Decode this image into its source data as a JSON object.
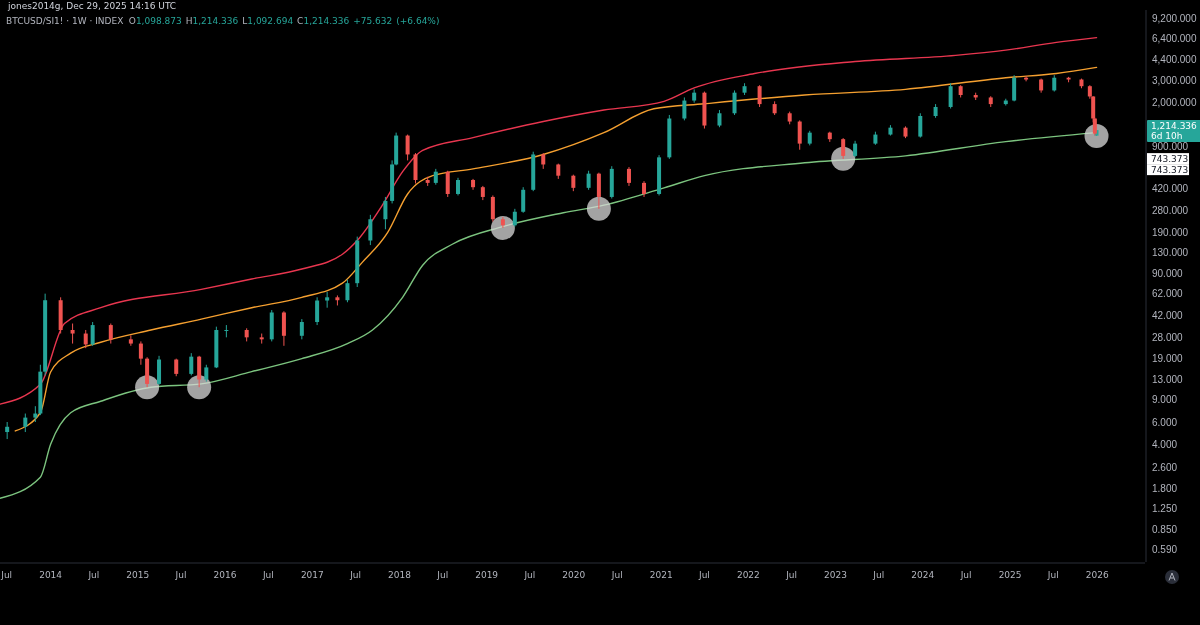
{
  "chart_data": {
    "type": "candlestick",
    "title": "BTCUSD/SI1! · 1W · INDEX",
    "subtitle": "O1,098.873 H1,214.336 L1,092.694 C1,214.336 +75.632 (+6.64%)",
    "annotations": [
      "jones2014g, Dec 29, 2025 14:16 UTC",
      "1,214.336",
      "6d 10h",
      "743.373",
      "743.373"
    ],
    "log": true,
    "xlim": [
      "2013-06-03",
      "2026-07-20"
    ],
    "ylim": [
      0.47,
      10800
    ],
    "xticks": [
      {
        "value": "2013-07-01",
        "label": "Jul"
      },
      {
        "value": "2014-01-01",
        "label": "2014"
      },
      {
        "value": "2014-07-01",
        "label": "Jul"
      },
      {
        "value": "2015-01-01",
        "label": "2015"
      },
      {
        "value": "2015-07-01",
        "label": "Jul"
      },
      {
        "value": "2016-01-01",
        "label": "2016"
      },
      {
        "value": "2016-07-01",
        "label": "Jul"
      },
      {
        "value": "2017-01-01",
        "label": "2017"
      },
      {
        "value": "2017-07-01",
        "label": "Jul"
      },
      {
        "value": "2018-01-01",
        "label": "2018"
      },
      {
        "value": "2018-07-01",
        "label": "Jul"
      },
      {
        "value": "2019-01-01",
        "label": "2019"
      },
      {
        "value": "2019-07-01",
        "label": "Jul"
      },
      {
        "value": "2020-01-01",
        "label": "2020"
      },
      {
        "value": "2020-07-01",
        "label": "Jul"
      },
      {
        "value": "2021-01-01",
        "label": "2021"
      },
      {
        "value": "2021-07-01",
        "label": "Jul"
      },
      {
        "value": "2022-01-01",
        "label": "2022"
      },
      {
        "value": "2022-07-01",
        "label": "Jul"
      },
      {
        "value": "2023-01-01",
        "label": "2023"
      },
      {
        "value": "2023-07-01",
        "label": "Jul"
      },
      {
        "value": "2024-01-01",
        "label": "2024"
      },
      {
        "value": "2024-07-01",
        "label": "Jul"
      },
      {
        "value": "2025-01-01",
        "label": "2025"
      },
      {
        "value": "2025-07-01",
        "label": "Jul"
      },
      {
        "value": "2026-01-01",
        "label": "2026"
      }
    ],
    "yticks": [
      {
        "value": 9200,
        "label": "9,200.000"
      },
      {
        "value": 6400,
        "label": "6,400.000"
      },
      {
        "value": 4400,
        "label": "4,400.000"
      },
      {
        "value": 3000,
        "label": "3,000.000"
      },
      {
        "value": 2000,
        "label": "2,000.000"
      },
      {
        "value": 900,
        "label": "900.000"
      },
      {
        "value": 420,
        "label": "420.000"
      },
      {
        "value": 280,
        "label": "280.000"
      },
      {
        "value": 190,
        "label": "190.000"
      },
      {
        "value": 130,
        "label": "130.000"
      },
      {
        "value": 90,
        "label": "90.000"
      },
      {
        "value": 62,
        "label": "62.000"
      },
      {
        "value": 42,
        "label": "42.000"
      },
      {
        "value": 28,
        "label": "28.000"
      },
      {
        "value": 19,
        "label": "19.000"
      },
      {
        "value": 13,
        "label": "13.000"
      },
      {
        "value": 9,
        "label": "9.000"
      },
      {
        "value": 6,
        "label": "6.000"
      },
      {
        "value": 4,
        "label": "4.000"
      },
      {
        "value": 2.6,
        "label": "2.600"
      },
      {
        "value": 1.8,
        "label": "1.800"
      },
      {
        "value": 1.25,
        "label": "1.250"
      },
      {
        "value": 0.85,
        "label": "0.850"
      },
      {
        "value": 0.59,
        "label": "0.590"
      }
    ],
    "series": [
      {
        "type": "line",
        "color": "#e8364f",
        "x": [
          "2013-06-03",
          "2013-11-19",
          "2014-02-28",
          "2014-07-30",
          "2015-09-24",
          "2016-04-22",
          "2016-11-18",
          "2017-05-07",
          "2017-07-08",
          "2017-10-22",
          "2018-01-14",
          "2018-04-08",
          "2018-11-05",
          "2019-08-26",
          "2020-05-06",
          "2021-01-13",
          "2021-05-19",
          "2022-01-27",
          "2023-03-24",
          "2024-05-18",
          "2024-12-14",
          "2025-07-14",
          "2025-12-29"
        ],
        "values": [
          8.3,
          11.9,
          36,
          48,
          67,
          81,
          97,
          127,
          163,
          312,
          570,
          840,
          1060,
          1420,
          1750,
          2050,
          2620,
          3400,
          4230,
          4730,
          5200,
          5990,
          6530
        ]
      },
      {
        "type": "line",
        "color": "#f5a030",
        "x": [
          "2013-08-06",
          "2013-11-19",
          "2014-01-01",
          "2014-03-26",
          "2014-07-30",
          "2015-02-25",
          "2015-09-24",
          "2016-04-22",
          "2016-11-18",
          "2017-05-07",
          "2017-07-30",
          "2017-11-12",
          "2018-02-04",
          "2018-05-20",
          "2018-11-05",
          "2019-08-26",
          "2020-05-06",
          "2020-12-01",
          "2021-07-01",
          "2022-08-25",
          "2023-10-21",
          "2024-12-14",
          "2025-07-14",
          "2025-12-29"
        ],
        "values": [
          5.1,
          7.1,
          14.9,
          21,
          25.6,
          32,
          39,
          48,
          58,
          75,
          110,
          188,
          380,
          530,
          600,
          780,
          1160,
          1790,
          1960,
          2300,
          2550,
          3150,
          3400,
          3800
        ]
      },
      {
        "type": "line",
        "color": "#7cc47f",
        "x": [
          "2013-06-03",
          "2013-11-19",
          "2014-01-01",
          "2014-03-26",
          "2014-07-30",
          "2015-02-25",
          "2015-09-24",
          "2016-04-22",
          "2016-11-18",
          "2017-05-28",
          "2017-09-10",
          "2018-01-14",
          "2018-04-08",
          "2018-08-12",
          "2019-03-10",
          "2019-11-18",
          "2020-05-06",
          "2021-01-13",
          "2021-07-01",
          "2022-08-25",
          "2023-10-21",
          "2024-12-14",
          "2025-12-29"
        ],
        "values": [
          1.5,
          2.2,
          4.0,
          7.1,
          8.75,
          11.3,
          12.0,
          15,
          19,
          25,
          32,
          58,
          104,
          153,
          210,
          270,
          310,
          425,
          530,
          670,
          760,
          985,
          1160
        ]
      },
      {
        "type": "scatter",
        "color": "#d9d9d9",
        "marker": "circle",
        "x": [
          "2015-02-09",
          "2015-09-15",
          "2019-03-10",
          "2020-04-15",
          "2023-02-02",
          "2025-12-29"
        ],
        "values": [
          11.3,
          11.3,
          205,
          290,
          720,
          1092.694
        ]
      },
      {
        "type": "candlestick",
        "color": "#26a69a",
        "x": [
          "2013-07-03",
          "2013-09-17",
          "2013-10-29",
          "2013-11-19",
          "2013-12-09",
          "2014-06-26",
          "2015-03-31",
          "2015-08-13",
          "2015-10-15",
          "2015-11-26",
          "2016-01-07",
          "2016-07-15",
          "2016-11-18",
          "2017-01-21",
          "2017-03-04",
          "2017-05-28",
          "2017-07-08",
          "2017-09-01",
          "2017-11-03",
          "2017-12-01",
          "2017-12-18",
          "2018-06-02",
          "2018-09-03",
          "2019-04-29",
          "2019-06-03",
          "2019-07-15",
          "2020-03-03",
          "2020-06-08",
          "2020-12-23",
          "2021-02-04",
          "2021-04-08",
          "2021-05-19",
          "2021-09-02",
          "2021-11-04",
          "2021-12-16",
          "2022-09-15",
          "2023-03-24",
          "2023-06-17",
          "2023-08-19",
          "2023-12-22",
          "2024-02-24",
          "2024-04-27",
          "2024-12-14",
          "2025-01-18",
          "2025-07-05",
          "2025-12-29"
        ],
        "ohlc": [
          [
            5.0,
            6.0,
            4.4,
            5.5
          ],
          [
            5.5,
            7.0,
            5.0,
            6.5
          ],
          [
            6.5,
            8.0,
            6.0,
            7.0
          ],
          [
            7.0,
            17,
            6.8,
            15
          ],
          [
            15,
            62,
            14,
            55
          ],
          [
            24.6,
            37,
            24,
            35
          ],
          [
            12,
            20,
            11.8,
            18.7
          ],
          [
            14.4,
            21,
            14,
            19.7
          ],
          [
            13,
            17,
            12.5,
            16.2
          ],
          [
            16.2,
            34,
            16,
            32
          ],
          [
            32,
            35,
            28,
            32
          ],
          [
            27,
            46,
            26,
            44
          ],
          [
            28.8,
            39,
            27,
            37
          ],
          [
            37,
            58,
            35,
            54.7
          ],
          [
            54.7,
            64,
            48,
            58
          ],
          [
            55,
            80,
            53,
            75
          ],
          [
            75,
            175,
            70,
            163
          ],
          [
            163,
            260,
            150,
            240
          ],
          [
            240,
            360,
            200,
            335
          ],
          [
            335,
            700,
            320,
            650
          ],
          [
            650,
            1160,
            640,
            1100
          ],
          [
            465,
            600,
            450,
            570
          ],
          [
            380,
            510,
            370,
            490
          ],
          [
            215,
            290,
            210,
            275
          ],
          [
            275,
            430,
            270,
            410
          ],
          [
            410,
            820,
            400,
            780
          ],
          [
            425,
            580,
            410,
            550
          ],
          [
            360,
            630,
            350,
            600
          ],
          [
            380,
            770,
            370,
            740
          ],
          [
            740,
            1600,
            720,
            1500
          ],
          [
            1500,
            2200,
            1450,
            2080
          ],
          [
            2080,
            2550,
            2000,
            2400
          ],
          [
            1320,
            1750,
            1280,
            1650
          ],
          [
            1650,
            2500,
            1600,
            2400
          ],
          [
            2400,
            2850,
            2300,
            2700
          ],
          [
            950,
            1200,
            920,
            1160
          ],
          [
            760,
            1000,
            740,
            950
          ],
          [
            950,
            1180,
            930,
            1120
          ],
          [
            1120,
            1330,
            1100,
            1270
          ],
          [
            1080,
            1650,
            1060,
            1570
          ],
          [
            1570,
            1950,
            1520,
            1850
          ],
          [
            1850,
            2850,
            1800,
            2700
          ],
          [
            1950,
            2150,
            1900,
            2080
          ],
          [
            2080,
            3300,
            2050,
            3150
          ],
          [
            2500,
            3300,
            2450,
            3150
          ],
          [
            1098.873,
            1214.336,
            1092.694,
            1214.336
          ]
        ]
      },
      {
        "type": "candlestick",
        "color": "#ef5350",
        "x": [
          "2014-02-12",
          "2014-04-03",
          "2014-05-28",
          "2014-09-10",
          "2014-12-03",
          "2015-01-14",
          "2015-02-09",
          "2015-06-11",
          "2015-09-15",
          "2016-04-01",
          "2016-06-03",
          "2016-09-04",
          "2017-04-16",
          "2018-02-04",
          "2018-03-09",
          "2018-04-29",
          "2018-07-22",
          "2018-11-05",
          "2018-12-16",
          "2019-01-27",
          "2019-03-10",
          "2019-08-26",
          "2019-10-28",
          "2019-12-30",
          "2020-04-15",
          "2020-08-19",
          "2020-10-21",
          "2021-07-01",
          "2022-02-17",
          "2022-04-21",
          "2022-06-23",
          "2022-08-04",
          "2022-12-08",
          "2023-02-02",
          "2023-10-21",
          "2024-06-08",
          "2024-08-10",
          "2024-10-12",
          "2025-03-09",
          "2025-05-11",
          "2025-09-03",
          "2025-10-27",
          "2025-12-01",
          "2025-12-15",
          "2025-12-22"
        ],
        "ohlc": [
          [
            55,
            58,
            30,
            32
          ],
          [
            32,
            36,
            25,
            30
          ],
          [
            30,
            32,
            23,
            24.6
          ],
          [
            35,
            36,
            25,
            27
          ],
          [
            27,
            29,
            24,
            25
          ],
          [
            25,
            26,
            17,
            19
          ],
          [
            19,
            19.5,
            11.3,
            12
          ],
          [
            18.7,
            19,
            13.8,
            14.4
          ],
          [
            19.7,
            20,
            11.3,
            13
          ],
          [
            32,
            33,
            26,
            28
          ],
          [
            28,
            30,
            25,
            27
          ],
          [
            44,
            45,
            24,
            28.8
          ],
          [
            58,
            60,
            50,
            55
          ],
          [
            1100,
            1120,
            700,
            780
          ],
          [
            780,
            800,
            460,
            490
          ],
          [
            490,
            520,
            440,
            465
          ],
          [
            570,
            580,
            360,
            380
          ],
          [
            490,
            500,
            410,
            430
          ],
          [
            430,
            440,
            340,
            360
          ],
          [
            360,
            370,
            230,
            240
          ],
          [
            240,
            250,
            205,
            215
          ],
          [
            780,
            800,
            600,
            650
          ],
          [
            650,
            660,
            500,
            530
          ],
          [
            530,
            540,
            400,
            425
          ],
          [
            550,
            560,
            290,
            360
          ],
          [
            600,
            620,
            440,
            465
          ],
          [
            465,
            480,
            360,
            380
          ],
          [
            2400,
            2450,
            1250,
            1320
          ],
          [
            2700,
            2750,
            1850,
            1950
          ],
          [
            1950,
            2050,
            1600,
            1650
          ],
          [
            1650,
            1700,
            1350,
            1420
          ],
          [
            1420,
            1450,
            850,
            950
          ],
          [
            1160,
            1180,
            980,
            1030
          ],
          [
            1030,
            1050,
            720,
            760
          ],
          [
            1270,
            1300,
            1050,
            1080
          ],
          [
            2700,
            2750,
            2200,
            2300
          ],
          [
            2300,
            2400,
            2100,
            2200
          ],
          [
            2200,
            2250,
            1850,
            1950
          ],
          [
            3150,
            3250,
            2950,
            3050
          ],
          [
            3050,
            3100,
            2400,
            2500
          ],
          [
            3150,
            3200,
            2900,
            3050
          ],
          [
            3050,
            3100,
            2600,
            2700
          ],
          [
            2700,
            2750,
            2150,
            2240
          ],
          [
            2240,
            2250,
            1400,
            1500
          ],
          [
            1500,
            1520,
            1100,
            1138.704
          ]
        ]
      }
    ]
  }
}
